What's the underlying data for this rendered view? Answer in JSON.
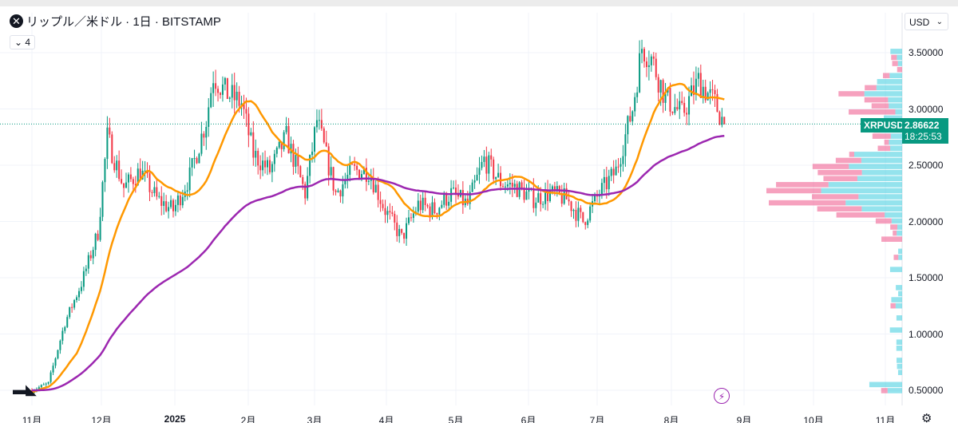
{
  "header": {
    "symbol_icon": "xrp-logo-icon",
    "title": "リップル／米ドル · 1日 · BITSTAMP",
    "indicators_toggle": "4"
  },
  "currency_select": "USD",
  "symbol_tag": "XRPUSD",
  "last_price": "2.86622",
  "countdown": "18:25:53",
  "logo": "TV",
  "colors": {
    "up": "#089981",
    "down": "#f23645",
    "ma_fast": "#ff9800",
    "ma_slow": "#9c27b0",
    "vp_up": "#4dd0e1",
    "vp_down": "#f06292",
    "accent": "#089981"
  },
  "chart_data": {
    "type": "candlestick",
    "y_axis": {
      "ticks": [
        "0.50000",
        "1.00000",
        "1.50000",
        "2.00000",
        "2.50000",
        "3.00000",
        "3.50000"
      ],
      "range": [
        0.47,
        3.7
      ]
    },
    "x_axis": {
      "ticks": [
        "11月",
        "12月",
        "2025",
        "2月",
        "3月",
        "4月",
        "5月",
        "6月",
        "7月",
        "8月",
        "9月",
        "10月",
        "11月"
      ]
    },
    "approx_closes": [
      [
        "2024-11-01",
        0.5
      ],
      [
        "2024-11-08",
        0.56
      ],
      [
        "2024-11-15",
        1.1
      ],
      [
        "2024-11-22",
        1.45
      ],
      [
        "2024-11-29",
        1.9
      ],
      [
        "2024-12-03",
        2.75
      ],
      [
        "2024-12-10",
        2.3
      ],
      [
        "2024-12-17",
        2.45
      ],
      [
        "2024-12-24",
        2.2
      ],
      [
        "2024-12-31",
        2.1
      ],
      [
        "2025-01-07",
        2.4
      ],
      [
        "2025-01-14",
        2.9
      ],
      [
        "2025-01-17",
        3.3
      ],
      [
        "2025-01-22",
        3.15
      ],
      [
        "2025-01-29",
        3.05
      ],
      [
        "2025-02-03",
        2.6
      ],
      [
        "2025-02-10",
        2.45
      ],
      [
        "2025-02-17",
        2.75
      ],
      [
        "2025-02-25",
        2.25
      ],
      [
        "2025-03-02",
        2.9
      ],
      [
        "2025-03-10",
        2.25
      ],
      [
        "2025-03-17",
        2.45
      ],
      [
        "2025-03-24",
        2.45
      ],
      [
        "2025-03-31",
        2.1
      ],
      [
        "2025-04-07",
        1.85
      ],
      [
        "2025-04-14",
        2.15
      ],
      [
        "2025-04-21",
        2.1
      ],
      [
        "2025-04-28",
        2.25
      ],
      [
        "2025-05-05",
        2.15
      ],
      [
        "2025-05-12",
        2.55
      ],
      [
        "2025-05-19",
        2.35
      ],
      [
        "2025-05-26",
        2.3
      ],
      [
        "2025-06-02",
        2.2
      ],
      [
        "2025-06-09",
        2.25
      ],
      [
        "2025-06-16",
        2.2
      ],
      [
        "2025-06-23",
        2.0
      ],
      [
        "2025-06-30",
        2.25
      ],
      [
        "2025-07-07",
        2.45
      ],
      [
        "2025-07-14",
        3.0
      ],
      [
        "2025-07-18",
        3.55
      ],
      [
        "2025-07-22",
        3.45
      ],
      [
        "2025-07-28",
        3.1
      ],
      [
        "2025-08-04",
        2.95
      ],
      [
        "2025-08-11",
        3.25
      ],
      [
        "2025-08-18",
        3.05
      ],
      [
        "2025-08-22",
        2.866
      ]
    ],
    "moving_averages": [
      "fast (orange)",
      "slow (purple)"
    ],
    "volume_profile": true,
    "grid": true
  }
}
